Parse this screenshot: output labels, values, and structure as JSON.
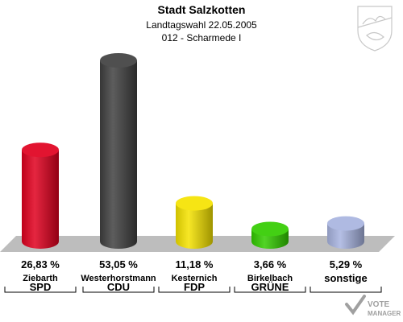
{
  "header": {
    "title": "Stadt Salzkotten",
    "subtitle": "Landtagswahl 22.05.2005",
    "district": "012 - Scharmede I"
  },
  "watermark": {
    "line1": "VOTE",
    "line2": "MANAGER"
  },
  "chart_data": {
    "type": "bar",
    "title": "Stadt Salzkotten",
    "categories": [
      "SPD",
      "CDU",
      "FDP",
      "GRÜNE",
      "sonstige"
    ],
    "candidates": [
      "Ziebarth",
      "Westerhorstmann",
      "Kesternich",
      "Birkelbach",
      ""
    ],
    "values": [
      26.83,
      53.05,
      11.18,
      3.66,
      5.29
    ],
    "value_labels": [
      "26,83 %",
      "53,05 %",
      "11,18 %",
      "3,66 %",
      "5,29 %"
    ],
    "colors": [
      "#e0001e",
      "#404040",
      "#f5e300",
      "#33cc00",
      "#a8b4e0"
    ],
    "ylim": [
      0,
      53.05
    ],
    "xlabel": "",
    "ylabel": ""
  }
}
